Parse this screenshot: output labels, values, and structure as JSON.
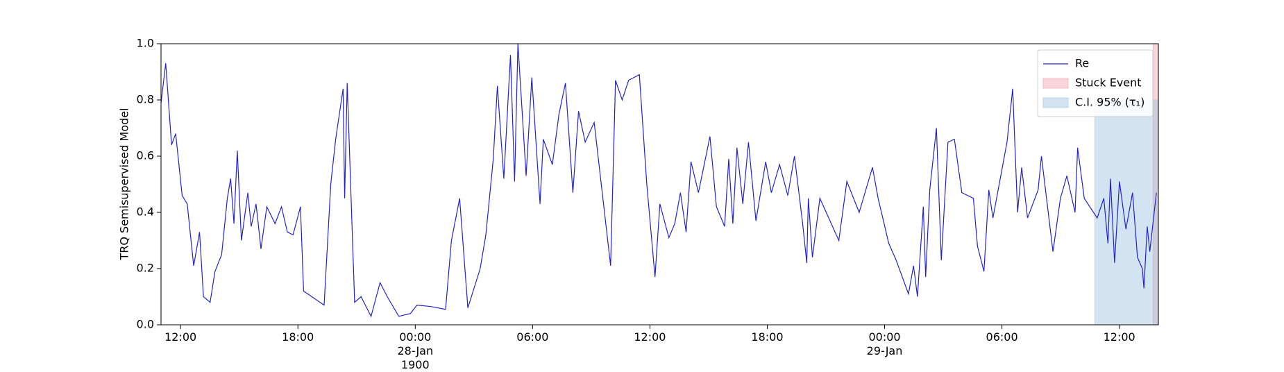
{
  "chart_data": {
    "type": "line",
    "y_label": "TRQ Semisupervised Model",
    "xlim": [
      11,
      62
    ],
    "xticks": [
      {
        "value": 12,
        "label": "12:00"
      },
      {
        "value": 18,
        "label": "18:00"
      },
      {
        "value": 24,
        "label": "00:00\n28-Jan\n1900"
      },
      {
        "value": 30,
        "label": "06:00"
      },
      {
        "value": 36,
        "label": "12:00"
      },
      {
        "value": 42,
        "label": "18:00"
      },
      {
        "value": 48,
        "label": "00:00\n29-Jan"
      },
      {
        "value": 54,
        "label": "06:00"
      },
      {
        "value": 60,
        "label": "12:00"
      }
    ],
    "ylim": [
      0,
      1
    ],
    "yticks": [
      {
        "value": 0,
        "label": "0.0"
      },
      {
        "value": 0.2,
        "label": "0.2"
      },
      {
        "value": 0.4,
        "label": "0.4"
      },
      {
        "value": 0.6,
        "label": "0.6"
      },
      {
        "value": 0.8,
        "label": "0.8"
      },
      {
        "value": 1,
        "label": "1.0"
      }
    ],
    "legend": "upper right",
    "series": [
      {
        "name": "Re",
        "color": "#2222cc",
        "x": [
          11.0,
          11.24,
          11.54,
          11.75,
          12.08,
          12.34,
          12.67,
          12.97,
          13.17,
          13.51,
          13.76,
          14.1,
          14.39,
          14.56,
          14.73,
          14.9,
          15.11,
          15.44,
          15.61,
          15.86,
          16.11,
          16.41,
          16.83,
          17.16,
          17.46,
          17.75,
          18.13,
          18.29,
          18.71,
          19.34,
          19.68,
          19.93,
          20.31,
          20.39,
          20.52,
          20.9,
          21.23,
          21.74,
          22.2,
          22.57,
          23.16,
          23.75,
          24.09,
          24.8,
          25.55,
          25.85,
          26.27,
          26.69,
          27.32,
          27.61,
          27.99,
          28.2,
          28.53,
          28.87,
          29.08,
          29.25,
          29.67,
          29.96,
          30.38,
          30.55,
          31.01,
          31.35,
          31.68,
          32.06,
          32.35,
          32.69,
          33.15,
          33.99,
          34.24,
          34.58,
          34.91,
          35.46,
          35.84,
          36.26,
          36.51,
          36.97,
          37.27,
          37.56,
          37.85,
          38.1,
          38.48,
          39.07,
          39.4,
          39.82,
          40.03,
          40.24,
          40.45,
          40.75,
          41.04,
          41.42,
          41.92,
          42.21,
          42.63,
          43.05,
          43.39,
          43.81,
          44.02,
          44.1,
          44.31,
          44.69,
          45.66,
          46.07,
          46.7,
          47.38,
          47.67,
          48.21,
          48.59,
          49.22,
          49.48,
          49.68,
          49.98,
          50.1,
          50.31,
          50.65,
          50.9,
          51.24,
          51.57,
          51.95,
          52.54,
          52.75,
          53.08,
          53.33,
          53.54,
          54.26,
          54.55,
          54.8,
          55.01,
          55.31,
          55.85,
          56.02,
          56.61,
          56.99,
          57.32,
          57.74,
          57.87,
          58.21,
          58.87,
          59.21,
          59.42,
          59.55,
          59.76,
          60.01,
          60.34,
          60.68,
          60.93,
          61.18,
          61.26,
          61.43,
          61.56,
          61.9
        ],
        "values": [
          0.79,
          0.93,
          0.64,
          0.68,
          0.46,
          0.43,
          0.21,
          0.33,
          0.1,
          0.08,
          0.19,
          0.25,
          0.45,
          0.52,
          0.36,
          0.62,
          0.3,
          0.47,
          0.35,
          0.43,
          0.27,
          0.42,
          0.36,
          0.42,
          0.33,
          0.32,
          0.42,
          0.12,
          0.1,
          0.07,
          0.5,
          0.66,
          0.84,
          0.45,
          0.86,
          0.08,
          0.1,
          0.03,
          0.15,
          0.1,
          0.03,
          0.04,
          0.07,
          0.065,
          0.055,
          0.3,
          0.45,
          0.06,
          0.2,
          0.32,
          0.59,
          0.85,
          0.52,
          0.96,
          0.51,
          1.0,
          0.53,
          0.88,
          0.43,
          0.66,
          0.57,
          0.75,
          0.86,
          0.47,
          0.76,
          0.65,
          0.72,
          0.21,
          0.87,
          0.8,
          0.87,
          0.89,
          0.5,
          0.17,
          0.43,
          0.31,
          0.36,
          0.47,
          0.33,
          0.58,
          0.47,
          0.67,
          0.42,
          0.35,
          0.59,
          0.36,
          0.63,
          0.43,
          0.65,
          0.37,
          0.58,
          0.47,
          0.57,
          0.46,
          0.6,
          0.36,
          0.22,
          0.45,
          0.24,
          0.45,
          0.3,
          0.51,
          0.4,
          0.56,
          0.45,
          0.29,
          0.23,
          0.11,
          0.21,
          0.1,
          0.42,
          0.17,
          0.48,
          0.7,
          0.23,
          0.65,
          0.66,
          0.47,
          0.45,
          0.28,
          0.19,
          0.48,
          0.38,
          0.65,
          0.84,
          0.4,
          0.56,
          0.38,
          0.48,
          0.6,
          0.26,
          0.45,
          0.53,
          0.4,
          0.63,
          0.45,
          0.38,
          0.45,
          0.29,
          0.52,
          0.22,
          0.51,
          0.34,
          0.47,
          0.24,
          0.2,
          0.13,
          0.35,
          0.26,
          0.47
        ]
      }
    ],
    "spans": [
      {
        "name": "Stuck Event",
        "color": "#f4a0a8",
        "x": [
          61.73,
          62
        ],
        "y": [
          0,
          1
        ]
      },
      {
        "name": "C.I. 95% (τ₁)",
        "color": "#9cc2df",
        "x": [
          58.75,
          62
        ],
        "y": [
          0,
          0.8
        ]
      }
    ]
  }
}
